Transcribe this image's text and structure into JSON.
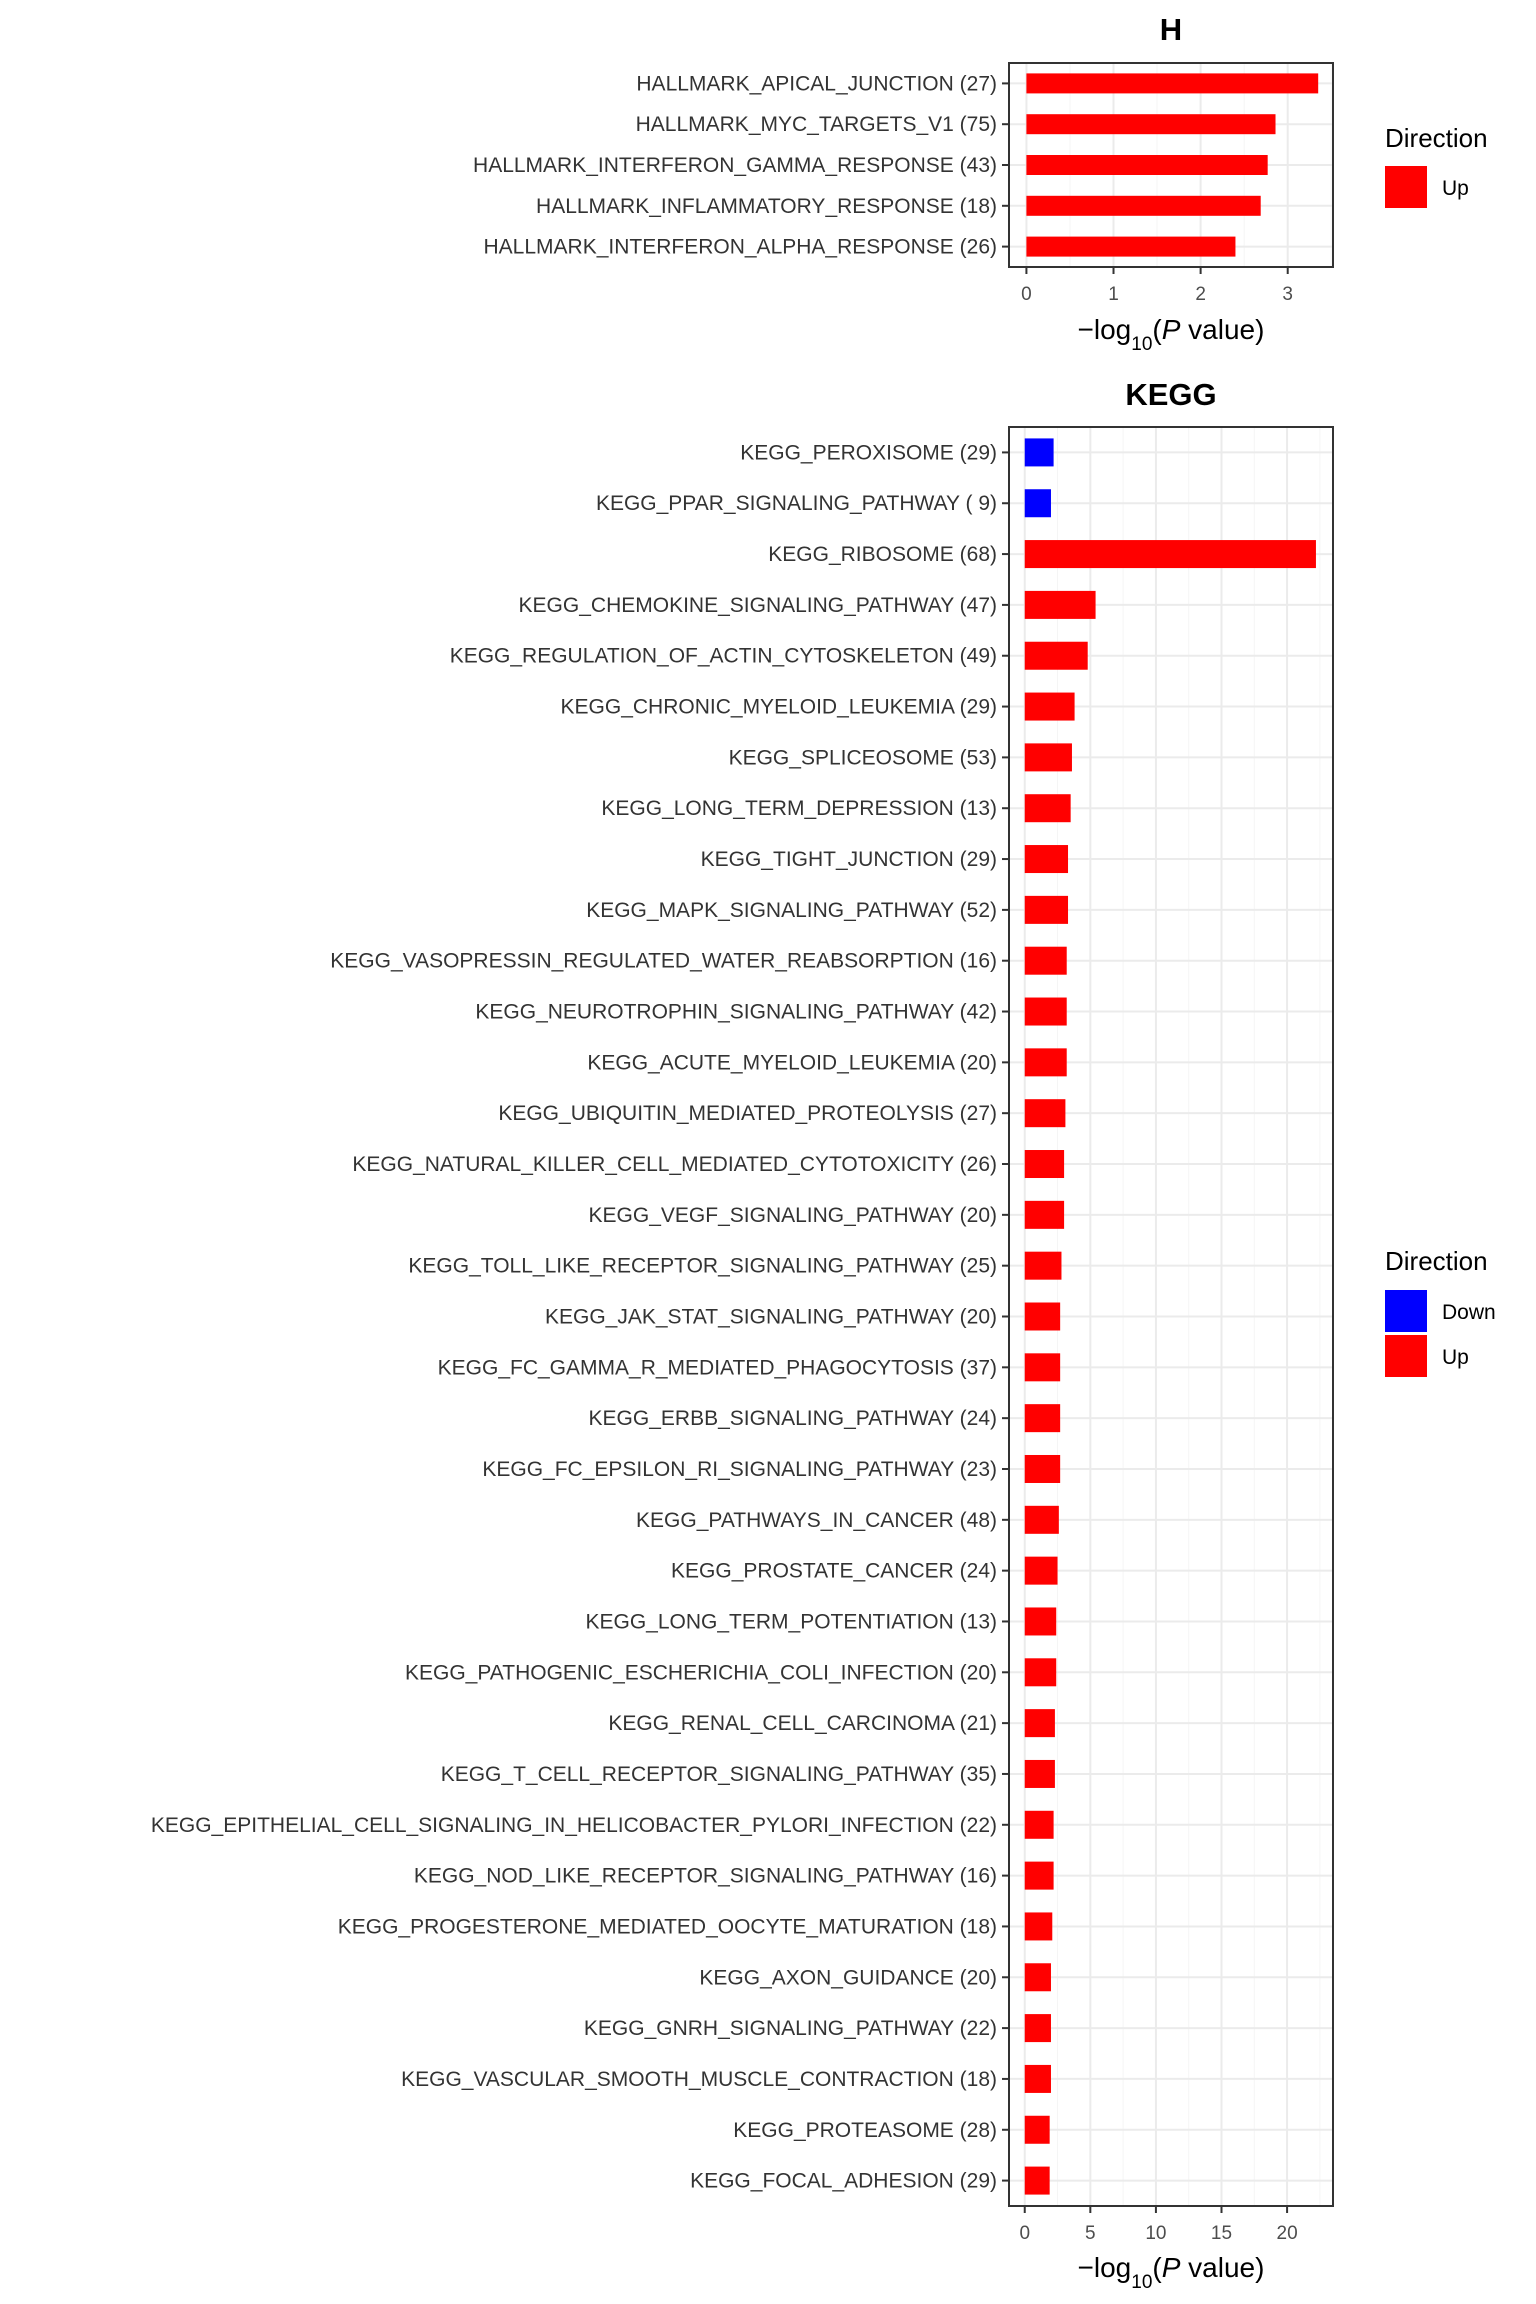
{
  "figure": {
    "colors": {
      "Up": "#FF0000",
      "Down": "#0000FF",
      "panel_border": "#333333",
      "grid_major": "#EBEBEB",
      "grid_minor": "#F5F5F5"
    }
  },
  "chart_data": [
    {
      "type": "bar",
      "orientation": "horizontal",
      "title": "H",
      "xlabel": "−log10(P value)",
      "xlim": [
        -0.2,
        3.52
      ],
      "xticks": [
        0,
        1,
        2,
        3
      ],
      "grid": true,
      "legend": {
        "title": "Direction",
        "entries": [
          "Up"
        ],
        "placement": "right"
      },
      "categories": [
        "HALLMARK_APICAL_JUNCTION (27)",
        "HALLMARK_MYC_TARGETS_V1 (75)",
        "HALLMARK_INTERFERON_GAMMA_RESPONSE (43)",
        "HALLMARK_INFLAMMATORY_RESPONSE (18)",
        "HALLMARK_INTERFERON_ALPHA_RESPONSE (26)"
      ],
      "values": [
        3.35,
        2.86,
        2.77,
        2.69,
        2.4
      ],
      "direction": [
        "Up",
        "Up",
        "Up",
        "Up",
        "Up"
      ]
    },
    {
      "type": "bar",
      "orientation": "horizontal",
      "title": "KEGG",
      "xlabel": "−log10(P value)",
      "xlim": [
        -1.2,
        23.5
      ],
      "xticks": [
        0,
        5,
        10,
        15,
        20
      ],
      "grid": true,
      "legend": {
        "title": "Direction",
        "entries": [
          "Down",
          "Up"
        ],
        "placement": "right"
      },
      "categories": [
        "KEGG_PEROXISOME (29)",
        "KEGG_PPAR_SIGNALING_PATHWAY ( 9)",
        "KEGG_RIBOSOME (68)",
        "KEGG_CHEMOKINE_SIGNALING_PATHWAY (47)",
        "KEGG_REGULATION_OF_ACTIN_CYTOSKELETON (49)",
        "KEGG_CHRONIC_MYELOID_LEUKEMIA (29)",
        "KEGG_SPLICEOSOME (53)",
        "KEGG_LONG_TERM_DEPRESSION (13)",
        "KEGG_TIGHT_JUNCTION (29)",
        "KEGG_MAPK_SIGNALING_PATHWAY (52)",
        "KEGG_VASOPRESSIN_REGULATED_WATER_REABSORPTION (16)",
        "KEGG_NEUROTROPHIN_SIGNALING_PATHWAY (42)",
        "KEGG_ACUTE_MYELOID_LEUKEMIA (20)",
        "KEGG_UBIQUITIN_MEDIATED_PROTEOLYSIS (27)",
        "KEGG_NATURAL_KILLER_CELL_MEDIATED_CYTOTOXICITY (26)",
        "KEGG_VEGF_SIGNALING_PATHWAY (20)",
        "KEGG_TOLL_LIKE_RECEPTOR_SIGNALING_PATHWAY (25)",
        "KEGG_JAK_STAT_SIGNALING_PATHWAY (20)",
        "KEGG_FC_GAMMA_R_MEDIATED_PHAGOCYTOSIS (37)",
        "KEGG_ERBB_SIGNALING_PATHWAY (24)",
        "KEGG_FC_EPSILON_RI_SIGNALING_PATHWAY (23)",
        "KEGG_PATHWAYS_IN_CANCER (48)",
        "KEGG_PROSTATE_CANCER (24)",
        "KEGG_LONG_TERM_POTENTIATION (13)",
        "KEGG_PATHOGENIC_ESCHERICHIA_COLI_INFECTION (20)",
        "KEGG_RENAL_CELL_CARCINOMA (21)",
        "KEGG_T_CELL_RECEPTOR_SIGNALING_PATHWAY (35)",
        "KEGG_EPITHELIAL_CELL_SIGNALING_IN_HELICOBACTER_PYLORI_INFECTION (22)",
        "KEGG_NOD_LIKE_RECEPTOR_SIGNALING_PATHWAY (16)",
        "KEGG_PROGESTERONE_MEDIATED_OOCYTE_MATURATION (18)",
        "KEGG_AXON_GUIDANCE (20)",
        "KEGG_GNRH_SIGNALING_PATHWAY (22)",
        "KEGG_VASCULAR_SMOOTH_MUSCLE_CONTRACTION (18)",
        "KEGG_PROTEASOME (28)",
        "KEGG_FOCAL_ADHESION (29)"
      ],
      "values": [
        2.2,
        2.0,
        22.2,
        5.4,
        4.8,
        3.8,
        3.6,
        3.5,
        3.3,
        3.3,
        3.2,
        3.2,
        3.2,
        3.1,
        3.0,
        3.0,
        2.8,
        2.7,
        2.7,
        2.7,
        2.7,
        2.6,
        2.5,
        2.4,
        2.4,
        2.3,
        2.3,
        2.2,
        2.2,
        2.1,
        2.0,
        2.0,
        2.0,
        1.9,
        1.9
      ],
      "direction": [
        "Down",
        "Down",
        "Up",
        "Up",
        "Up",
        "Up",
        "Up",
        "Up",
        "Up",
        "Up",
        "Up",
        "Up",
        "Up",
        "Up",
        "Up",
        "Up",
        "Up",
        "Up",
        "Up",
        "Up",
        "Up",
        "Up",
        "Up",
        "Up",
        "Up",
        "Up",
        "Up",
        "Up",
        "Up",
        "Up",
        "Up",
        "Up",
        "Up",
        "Up",
        "Up"
      ]
    }
  ]
}
